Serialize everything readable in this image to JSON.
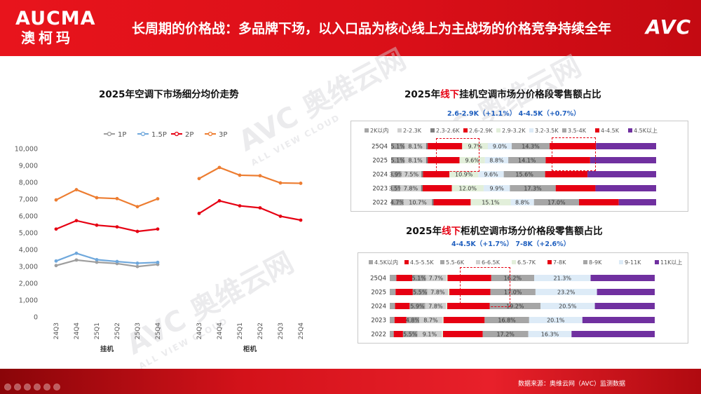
{
  "header": {
    "brand_en": "AUCMA",
    "brand_cn": "澳柯玛",
    "title": "长周期的价格战：多品牌下场，以入口品为核心线上为主战场的价格竞争持续全年",
    "logo": "AVC"
  },
  "footer": {
    "source": "数据来源：奥维云网（AVC）监测数据"
  },
  "watermark": {
    "main": "AVC 奥维云网",
    "sub": "ALL VIEW CLOUD"
  },
  "colors": {
    "brand_red": "#e60012",
    "header_red": "#d90f18",
    "subtitle_blue": "#1f5fbf"
  },
  "left_chart": {
    "title": "2025年空调下市场细分均价走势",
    "groups": [
      "挂机",
      "柜机"
    ],
    "categories": [
      "24Q3",
      "24Q4",
      "25Q1",
      "25Q2",
      "25Q3",
      "25Q4"
    ]
  },
  "right_top": {
    "title_pre": "2025年",
    "title_accent": "线下",
    "title_post": "挂机空调市场分价格段零售额占比",
    "subtitle": "2.6-2.9K（+1.1%）  4-4.5K（+0.7%）"
  },
  "right_bottom": {
    "title_pre": "2025年",
    "title_accent": "线下",
    "title_post": "柜机空调市场分价格段零售额占比",
    "subtitle": "4-4.5K（+1.7%）  7-8K（+2.6%）"
  },
  "chart_data": [
    {
      "type": "line",
      "title": "2025年空调下市场细分均价走势",
      "x": [
        "24Q3",
        "24Q4",
        "25Q1",
        "25Q2",
        "25Q3",
        "25Q4",
        "24Q3",
        "24Q4",
        "25Q1",
        "25Q2",
        "25Q3",
        "25Q4"
      ],
      "x_groups": [
        {
          "label": "挂机",
          "start": 0,
          "end": 5
        },
        {
          "label": "柜机",
          "start": 6,
          "end": 11
        }
      ],
      "ylim": [
        0,
        10000
      ],
      "yticks": [
        "0",
        "1,000",
        "2,000",
        "3,000",
        "4,000",
        "5,000",
        "6,000",
        "7,000",
        "8,000",
        "9,000",
        "10,000"
      ],
      "legend": "top",
      "grid": false,
      "series": [
        {
          "name": "1P",
          "color": "#9e9e9e",
          "values": [
            3050,
            3380,
            3250,
            3170,
            2990,
            3120,
            null,
            null,
            null,
            null,
            null,
            null
          ]
        },
        {
          "name": "1.5P",
          "color": "#6fa8dc",
          "values": [
            3320,
            3780,
            3400,
            3290,
            3190,
            3240,
            null,
            null,
            null,
            null,
            null,
            null
          ]
        },
        {
          "name": "2P",
          "color": "#e60012",
          "values": [
            5220,
            5720,
            5450,
            5350,
            5080,
            5220,
            6150,
            6900,
            6600,
            6480,
            5980,
            5750
          ]
        },
        {
          "name": "3P",
          "color": "#ed7d31",
          "values": [
            6950,
            7560,
            7080,
            7030,
            6550,
            7020,
            8220,
            8880,
            8420,
            8390,
            7960,
            7940
          ]
        }
      ]
    },
    {
      "type": "bar",
      "stacked": true,
      "orientation": "horizontal",
      "title": "2025年线下挂机空调市场分价格段零售额占比",
      "legend": "top",
      "categories": [
        "25Q4",
        "2025",
        "2024",
        "2023",
        "2022"
      ],
      "series": [
        {
          "name": "2K以内",
          "color": "#a6a6a6",
          "values": [
            5.1,
            5.1,
            3.9,
            3.5,
            4.7
          ],
          "labels": [
            "5.1%",
            "5.1%",
            "3.9%",
            "3.5%",
            "4.7%"
          ]
        },
        {
          "name": "2-2.3K",
          "color": "#cfcfcf",
          "values": [
            8.1,
            8.1,
            7.5,
            7.8,
            10.7
          ],
          "labels": [
            "8.1%",
            "8.1%",
            "7.5%",
            "7.8%",
            "10.7%"
          ]
        },
        {
          "name": "2.3-2.6K",
          "color": "#7f7f7f",
          "values": [
            0.6,
            0.6,
            0.6,
            0.6,
            0.6
          ],
          "labels": [
            "",
            "",
            "",
            "",
            ""
          ]
        },
        {
          "name": "2.6-2.9K",
          "color": "#e60012",
          "values": [
            13.0,
            12.0,
            10.0,
            11.0,
            14.0
          ],
          "labels": [
            "",
            "",
            "",
            "",
            ""
          ]
        },
        {
          "name": "2.9-3.2K",
          "color": "#e2efda",
          "values": [
            9.7,
            9.6,
            10.9,
            12.0,
            15.1
          ],
          "labels": [
            "9.7%",
            "9.6%",
            "10.9%",
            "12.0%",
            "15.1%"
          ]
        },
        {
          "name": "3.2-3.5K",
          "color": "#ddebf7",
          "values": [
            9.0,
            8.8,
            9.6,
            9.9,
            8.8
          ],
          "labels": [
            "9.0%",
            "8.8%",
            "9.6%",
            "9.9%",
            "8.8%"
          ]
        },
        {
          "name": "3.5-4K",
          "color": "#a6a6a6",
          "values": [
            14.3,
            14.1,
            15.6,
            17.3,
            17.0
          ],
          "labels": [
            "14.3%",
            "14.1%",
            "15.6%",
            "17.3%",
            "17.0%"
          ]
        },
        {
          "name": "4-4.5K",
          "color": "#e60012",
          "values": [
            17.5,
            16.8,
            16.0,
            15.0,
            15.0
          ],
          "labels": [
            "",
            "",
            "",
            "",
            ""
          ]
        },
        {
          "name": "4.5K以上",
          "color": "#7030a0",
          "values": [
            22.7,
            24.9,
            25.9,
            22.9,
            14.1
          ],
          "labels": [
            "",
            "",
            "",
            "",
            ""
          ]
        }
      ]
    },
    {
      "type": "bar",
      "stacked": true,
      "orientation": "horizontal",
      "title": "2025年线下柜机空调市场分价格段零售额占比",
      "legend": "top",
      "categories": [
        "25Q4",
        "2025",
        "2024",
        "2023",
        "2022"
      ],
      "series": [
        {
          "name": "4.5K以内",
          "color": "#a6a6a6",
          "values": [
            2.5,
            2.2,
            2.0,
            1.8,
            1.5
          ],
          "labels": [
            "",
            "",
            "",
            "",
            ""
          ]
        },
        {
          "name": "4.5-5.5K",
          "color": "#e60012",
          "values": [
            6.0,
            6.5,
            5.5,
            4.5,
            3.5
          ],
          "labels": [
            "",
            "",
            "",
            "",
            ""
          ]
        },
        {
          "name": "5.5-6K",
          "color": "#a6a6a6",
          "values": [
            5.1,
            5.5,
            5.9,
            4.8,
            5.5
          ],
          "labels": [
            "5.1%",
            "5.5%",
            "5.9%",
            "4.8%",
            "5.5%"
          ]
        },
        {
          "name": "6-6.5K",
          "color": "#cfcfcf",
          "values": [
            7.7,
            7.8,
            7.8,
            8.7,
            9.1
          ],
          "labels": [
            "7.7%",
            "7.8%",
            "7.8%",
            "8.7%",
            "9.1%"
          ]
        },
        {
          "name": "6.5-7K",
          "color": "#e2efda",
          "values": [
            0.5,
            0.5,
            0.5,
            0.5,
            0.5
          ],
          "labels": [
            "",
            "",
            "",
            "",
            ""
          ]
        },
        {
          "name": "7-8K",
          "color": "#e60012",
          "values": [
            16.5,
            15.5,
            16.0,
            15.5,
            15.0
          ],
          "labels": [
            "",
            "",
            "",
            "",
            ""
          ]
        },
        {
          "name": "8-9K",
          "color": "#a6a6a6",
          "values": [
            16.2,
            17.0,
            19.2,
            16.8,
            17.2
          ],
          "labels": [
            "16.2%",
            "17.0%",
            "19.2%",
            "16.8%",
            "17.2%"
          ]
        },
        {
          "name": "9-11K",
          "color": "#ddebf7",
          "values": [
            21.3,
            23.2,
            20.5,
            20.1,
            16.3
          ],
          "labels": [
            "21.3%",
            "23.2%",
            "20.5%",
            "20.1%",
            "16.3%"
          ]
        },
        {
          "name": "11K以上",
          "color": "#7030a0",
          "values": [
            24.2,
            21.8,
            22.6,
            27.3,
            31.4
          ],
          "labels": [
            "",
            "",
            "",
            "",
            ""
          ]
        }
      ]
    }
  ]
}
